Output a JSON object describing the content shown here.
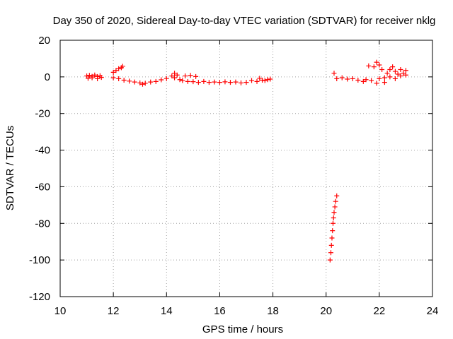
{
  "chart_data": {
    "type": "scatter",
    "title": "Day 350 of 2020, Sidereal Day-to-day VTEC variation (SDTVAR) for receiver nklg",
    "xlabel": "GPS time / hours",
    "ylabel": "SDTVAR / TECUs",
    "xlim": [
      10,
      24
    ],
    "ylim": [
      -120,
      20
    ],
    "xticks": [
      "10",
      "12",
      "14",
      "16",
      "18",
      "20",
      "22",
      "24"
    ],
    "yticks": [
      "20",
      "0",
      "-20",
      "-40",
      "-60",
      "-80",
      "-100",
      "-120"
    ],
    "grid": true,
    "marker": "plus",
    "color": "#ff0000",
    "series": [
      {
        "points": [
          [
            11.0,
            0.5
          ],
          [
            11.1,
            0.8
          ],
          [
            11.2,
            0.3
          ],
          [
            11.3,
            1.0
          ],
          [
            11.4,
            0.2
          ],
          [
            11.5,
            0.6
          ],
          [
            11.05,
            -0.8
          ],
          [
            11.2,
            -0.5
          ],
          [
            11.4,
            -1.0
          ],
          [
            11.55,
            -0.3
          ],
          [
            12.0,
            2.5
          ],
          [
            12.1,
            3.5
          ],
          [
            12.2,
            4.5
          ],
          [
            12.3,
            5.0
          ],
          [
            12.35,
            5.8
          ],
          [
            12.0,
            -0.5
          ],
          [
            12.2,
            -1.0
          ],
          [
            12.4,
            -1.8
          ],
          [
            12.6,
            -2.3
          ],
          [
            12.8,
            -2.8
          ],
          [
            13.0,
            -3.3
          ],
          [
            13.1,
            -4.0
          ],
          [
            13.2,
            -3.5
          ],
          [
            13.4,
            -2.8
          ],
          [
            13.6,
            -2.5
          ],
          [
            13.8,
            -1.6
          ],
          [
            14.0,
            -0.9
          ],
          [
            14.2,
            0.5
          ],
          [
            14.3,
            2.0
          ],
          [
            14.4,
            1.0
          ],
          [
            14.3,
            -0.5
          ],
          [
            14.5,
            -1.5
          ],
          [
            14.6,
            -2.0
          ],
          [
            14.8,
            -2.5
          ],
          [
            15.0,
            -2.6
          ],
          [
            14.7,
            0.5
          ],
          [
            14.9,
            0.8
          ],
          [
            15.1,
            0.2
          ],
          [
            15.2,
            -3.0
          ],
          [
            15.4,
            -2.5
          ],
          [
            15.6,
            -3.0
          ],
          [
            15.8,
            -2.8
          ],
          [
            16.0,
            -3.0
          ],
          [
            16.2,
            -2.7
          ],
          [
            16.4,
            -3.0
          ],
          [
            16.6,
            -2.8
          ],
          [
            16.8,
            -3.3
          ],
          [
            17.0,
            -3.0
          ],
          [
            17.2,
            -2.0
          ],
          [
            17.4,
            -2.5
          ],
          [
            17.5,
            -0.8
          ],
          [
            17.6,
            -1.8
          ],
          [
            17.7,
            -2.0
          ],
          [
            17.8,
            -1.5
          ],
          [
            17.9,
            -1.2
          ],
          [
            20.3,
            2.0
          ],
          [
            20.4,
            -1.0
          ],
          [
            20.6,
            -0.5
          ],
          [
            20.8,
            -1.2
          ],
          [
            21.0,
            -1.0
          ],
          [
            21.2,
            -1.8
          ],
          [
            21.4,
            -2.5
          ],
          [
            21.5,
            -1.5
          ],
          [
            21.7,
            -2.0
          ],
          [
            21.9,
            -3.5
          ],
          [
            21.6,
            6.0
          ],
          [
            21.8,
            5.5
          ],
          [
            21.9,
            8.0
          ],
          [
            22.0,
            6.5
          ],
          [
            22.1,
            4.0
          ],
          [
            22.0,
            -1.0
          ],
          [
            22.2,
            -0.5
          ],
          [
            22.3,
            2.0
          ],
          [
            22.4,
            4.0
          ],
          [
            22.5,
            5.5
          ],
          [
            22.2,
            -3.0
          ],
          [
            22.4,
            0.0
          ],
          [
            22.6,
            3.0
          ],
          [
            22.7,
            1.5
          ],
          [
            22.8,
            4.0
          ],
          [
            22.9,
            2.0
          ],
          [
            23.0,
            3.5
          ],
          [
            22.6,
            -1.0
          ],
          [
            22.8,
            0.5
          ],
          [
            23.0,
            1.0
          ],
          [
            20.15,
            -100.0
          ],
          [
            20.18,
            -96.0
          ],
          [
            20.2,
            -92.0
          ],
          [
            20.22,
            -88.0
          ],
          [
            20.24,
            -84.0
          ],
          [
            20.26,
            -80.0
          ],
          [
            20.28,
            -77.0
          ],
          [
            20.3,
            -74.0
          ],
          [
            20.33,
            -71.0
          ],
          [
            20.36,
            -68.0
          ],
          [
            20.4,
            -65.0
          ]
        ]
      }
    ]
  }
}
